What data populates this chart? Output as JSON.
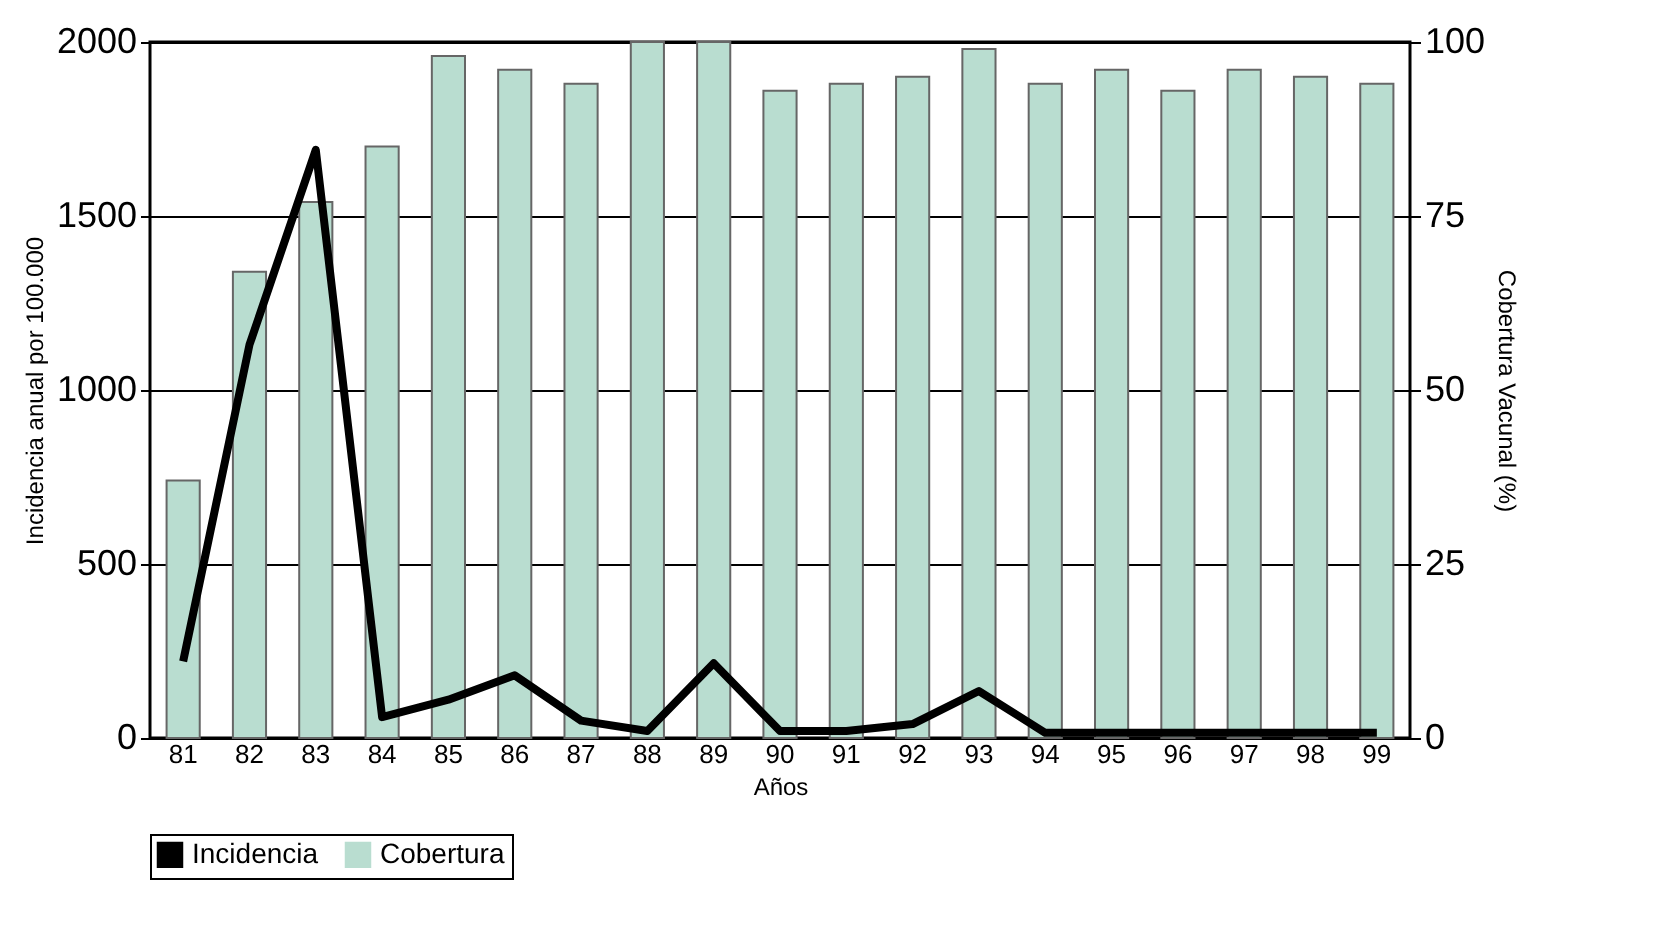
{
  "chart_data": {
    "type": "bar",
    "xlabel": "Años",
    "ylabel": "Incidencia anual por 100.000",
    "y2label": "Cobertura Vacunal (%)",
    "categories": [
      "81",
      "82",
      "83",
      "84",
      "85",
      "86",
      "87",
      "88",
      "89",
      "90",
      "91",
      "92",
      "93",
      "94",
      "95",
      "96",
      "97",
      "98",
      "99"
    ],
    "series": [
      {
        "name": "Incidencia",
        "type": "line",
        "axis": "y",
        "color": "#000000",
        "values": [
          220,
          1130,
          1690,
          60,
          110,
          180,
          50,
          20,
          215,
          20,
          20,
          40,
          135,
          15,
          15,
          15,
          15,
          15,
          15
        ]
      },
      {
        "name": "Cobertura",
        "axis": "y2",
        "color": "#b9ddd0",
        "values": [
          37,
          67,
          77,
          85,
          98,
          96,
          94,
          100,
          100,
          93,
          94,
          95,
          99,
          94,
          96,
          93,
          96,
          95,
          94
        ]
      }
    ],
    "ylim": [
      0,
      2000
    ],
    "yticks": [
      0,
      500,
      1000,
      1500,
      2000
    ],
    "y2lim": [
      0,
      100
    ],
    "y2ticks": [
      0,
      25,
      50,
      75,
      100
    ],
    "grid": "y",
    "legend": "bottom",
    "marker": "none",
    "line_style": "solid"
  }
}
